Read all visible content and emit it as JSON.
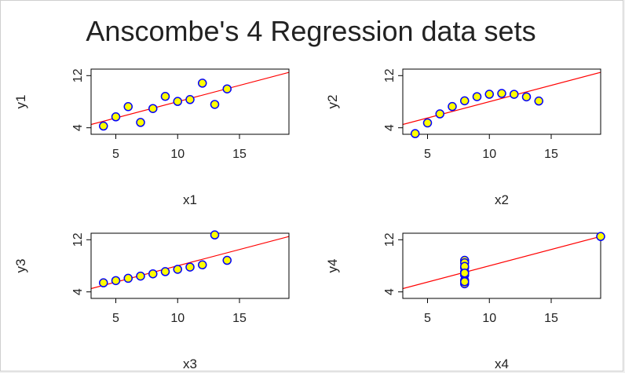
{
  "title": "Anscombe's 4 Regression data sets",
  "colors": {
    "point_fill": "#ffff00",
    "point_stroke": "#0000ff",
    "line": "#ff0000",
    "axis": "#000000",
    "text": "#222222"
  },
  "chart_data": [
    {
      "type": "scatter",
      "xlabel": "x1",
      "ylabel": "y1",
      "xlim": [
        3,
        19
      ],
      "ylim": [
        3,
        13
      ],
      "xticks": [
        5,
        10,
        15
      ],
      "yticks": [
        4,
        12
      ],
      "x": [
        10,
        8,
        13,
        9,
        11,
        14,
        6,
        4,
        12,
        7,
        5
      ],
      "y": [
        8.04,
        6.95,
        7.58,
        8.81,
        8.33,
        9.96,
        7.24,
        4.26,
        10.84,
        4.82,
        5.68
      ],
      "fit": {
        "intercept": 3.0,
        "slope": 0.5
      }
    },
    {
      "type": "scatter",
      "xlabel": "x2",
      "ylabel": "y2",
      "xlim": [
        3,
        19
      ],
      "ylim": [
        3,
        13
      ],
      "xticks": [
        5,
        10,
        15
      ],
      "yticks": [
        4,
        12
      ],
      "x": [
        10,
        8,
        13,
        9,
        11,
        14,
        6,
        4,
        12,
        7,
        5
      ],
      "y": [
        9.14,
        8.14,
        8.74,
        8.77,
        9.26,
        8.1,
        6.13,
        3.1,
        9.13,
        7.26,
        4.74
      ],
      "fit": {
        "intercept": 3.0,
        "slope": 0.5
      }
    },
    {
      "type": "scatter",
      "xlabel": "x3",
      "ylabel": "y3",
      "xlim": [
        3,
        19
      ],
      "ylim": [
        3,
        13
      ],
      "xticks": [
        5,
        10,
        15
      ],
      "yticks": [
        4,
        12
      ],
      "x": [
        10,
        8,
        13,
        9,
        11,
        14,
        6,
        4,
        12,
        7,
        5
      ],
      "y": [
        7.46,
        6.77,
        12.74,
        7.11,
        7.81,
        8.84,
        6.08,
        5.39,
        8.15,
        6.42,
        5.73
      ],
      "fit": {
        "intercept": 3.0,
        "slope": 0.5
      }
    },
    {
      "type": "scatter",
      "xlabel": "x4",
      "ylabel": "y4",
      "xlim": [
        3,
        19
      ],
      "ylim": [
        3,
        13
      ],
      "xticks": [
        5,
        10,
        15
      ],
      "yticks": [
        4,
        12
      ],
      "x": [
        8,
        8,
        8,
        8,
        8,
        8,
        8,
        19,
        8,
        8,
        8
      ],
      "y": [
        6.58,
        5.76,
        7.71,
        8.84,
        8.47,
        7.04,
        5.25,
        12.5,
        5.56,
        7.91,
        6.89
      ],
      "fit": {
        "intercept": 3.0,
        "slope": 0.5
      }
    }
  ]
}
